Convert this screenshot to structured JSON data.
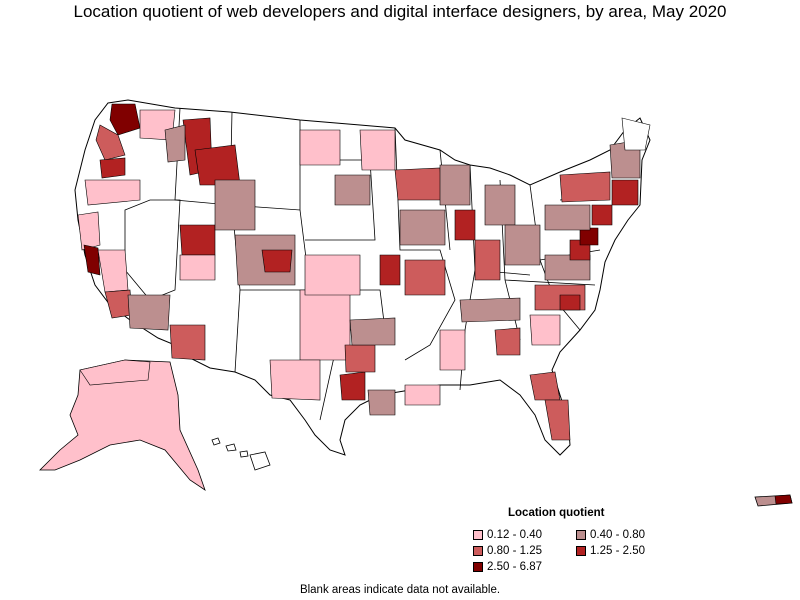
{
  "title": "Location quotient of web developers and digital interface designers, by area, May 2020",
  "legend": {
    "title": "Location quotient",
    "items": [
      {
        "label": "0.12 - 0.40",
        "color": "#ffc0cb"
      },
      {
        "label": "0.40 - 0.80",
        "color": "#bc8f8f"
      },
      {
        "label": "0.80 - 1.25",
        "color": "#cd5c5c"
      },
      {
        "label": "1.25 - 2.50",
        "color": "#b22222"
      },
      {
        "label": "2.50 - 6.87",
        "color": "#800000"
      }
    ]
  },
  "note": "Blank areas indicate data not available.",
  "colors": {
    "no_data": "#ffffff",
    "border": "#000000"
  }
}
